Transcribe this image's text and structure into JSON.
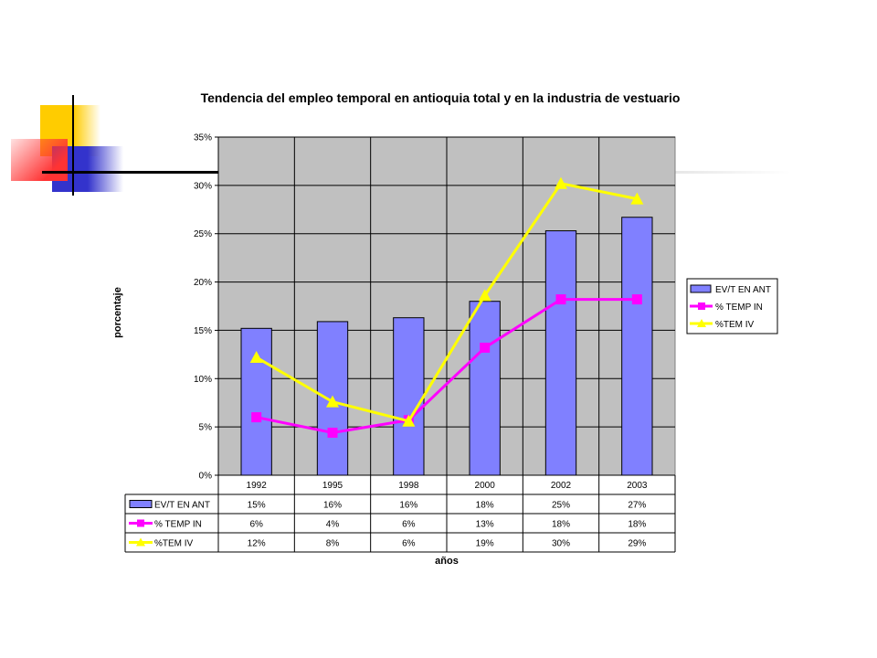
{
  "colors": {
    "plot_bg": "#C0C0C0",
    "bar": "#8080FF",
    "line_temp_in": "#FF00FF",
    "line_tem_iv": "#FFFF00",
    "deco_yellow": "#FFCC00",
    "deco_blue": "#3333CC",
    "deco_red": "#FF3333"
  },
  "chart_data": {
    "type": "bar",
    "title": "Tendencia del empleo temporal en antioquia total y en la industria de vestuario",
    "xlabel": "años",
    "ylabel": "porcentaje",
    "categories": [
      "1992",
      "1995",
      "1998",
      "2000",
      "2002",
      "2003"
    ],
    "y_ticks": [
      "0%",
      "5%",
      "10%",
      "15%",
      "20%",
      "25%",
      "30%",
      "35%"
    ],
    "ylim": [
      0,
      35
    ],
    "grid": true,
    "legend_position": "right",
    "series": [
      {
        "name": "EV/T EN ANT",
        "type": "bar",
        "values": [
          15.2,
          15.9,
          16.3,
          18.0,
          25.3,
          26.7
        ],
        "labels": [
          "15%",
          "16%",
          "16%",
          "18%",
          "25%",
          "27%"
        ]
      },
      {
        "name": "% TEMP IN",
        "type": "line",
        "marker": "square",
        "values": [
          6.0,
          4.4,
          5.7,
          13.2,
          18.2,
          18.2
        ],
        "labels": [
          "6%",
          "4%",
          "6%",
          "13%",
          "18%",
          "18%"
        ]
      },
      {
        "name": "%TEM IV",
        "type": "line",
        "marker": "triangle",
        "values": [
          12.2,
          7.6,
          5.6,
          18.6,
          30.2,
          28.6
        ],
        "labels": [
          "12%",
          "8%",
          "6%",
          "19%",
          "30%",
          "29%"
        ]
      }
    ]
  }
}
